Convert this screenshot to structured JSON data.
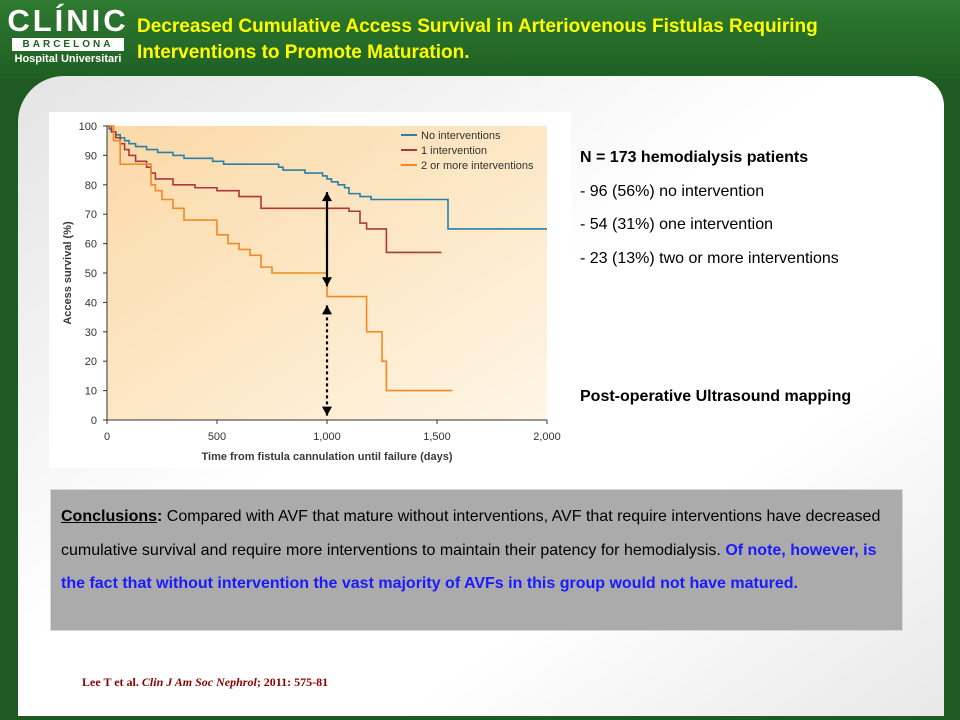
{
  "logo": {
    "name": "CLÍNIC",
    "city": "BARCELONA",
    "hospital": "Hospital Universitari"
  },
  "title": {
    "line1": "Decreased Cumulative Access Survival in Arteriovenous Fistulas Requiring",
    "line2": "Interventions to Promote Maturation."
  },
  "stats": {
    "header": "N = 173 hemodialysis patients",
    "items": [
      "- 96 (56%) no intervention",
      "- 54 (31%) one intervention",
      "- 23 (13%) two or more interventions"
    ]
  },
  "ultrasound": "Post-operative Ultrasound mapping",
  "conclusion": {
    "label": "Conclusions",
    "colon": ":",
    "text": " Compared with AVF that mature without interventions, AVF that require interventions have decreased cumulative survival and require more interventions to maintain their patency for hemodialysis. ",
    "note": "Of note, however, is the fact that without intervention the vast majority of AVFs in this group would not have matured."
  },
  "citation": {
    "authors": "Lee T et al. ",
    "journal": "Clin J Am Soc Nephrol",
    "rest": "; 2011: 575-81"
  },
  "colors": {
    "header_green": "#1f5f24",
    "title_yellow": "#ffff00",
    "none": "#2b7fa8",
    "one": "#a83a3e",
    "two": "#f08a24",
    "note_blue": "#1a1aff"
  },
  "chart_data": {
    "type": "line",
    "step": true,
    "xlabel": "Time from fistula cannulation until failure (days)",
    "ylabel": "Access survival (%)",
    "xlim": [
      0,
      2000
    ],
    "ylim": [
      0,
      100
    ],
    "xticks": [
      0,
      500,
      1000,
      1500,
      2000
    ],
    "xtick_labels": [
      "0",
      "500",
      "1,000",
      "1,500",
      "2,000"
    ],
    "yticks": [
      0,
      10,
      20,
      30,
      40,
      50,
      60,
      70,
      80,
      90,
      100
    ],
    "grid": false,
    "legend_position": "top-right",
    "series": [
      {
        "name": "No interventions",
        "color": "#2b7fa8",
        "x": [
          0,
          10,
          20,
          40,
          60,
          80,
          100,
          130,
          180,
          230,
          300,
          350,
          450,
          480,
          530,
          650,
          780,
          800,
          900,
          980,
          1000,
          1020,
          1050,
          1080,
          1100,
          1150,
          1200,
          1300,
          1520,
          1550,
          2000
        ],
        "y": [
          100,
          99,
          98,
          97,
          96,
          95,
          94,
          93,
          92,
          91,
          90,
          89,
          89,
          88,
          87,
          87,
          86,
          85,
          84,
          83,
          82,
          81,
          80,
          79,
          77,
          76,
          75,
          75,
          75,
          65,
          65
        ]
      },
      {
        "name": "1 intervention",
        "color": "#a83a3e",
        "x": [
          0,
          20,
          40,
          60,
          80,
          100,
          130,
          180,
          200,
          220,
          300,
          400,
          500,
          600,
          700,
          1000,
          1100,
          1150,
          1180,
          1200,
          1270,
          1520
        ],
        "y": [
          100,
          98,
          96,
          94,
          92,
          90,
          88,
          86,
          84,
          82,
          80,
          79,
          78,
          76,
          72,
          72,
          71,
          67,
          65,
          65,
          57,
          57
        ]
      },
      {
        "name": "2 or more interventions",
        "color": "#f08a24",
        "x": [
          0,
          30,
          60,
          100,
          200,
          220,
          250,
          300,
          350,
          450,
          500,
          550,
          600,
          650,
          700,
          750,
          850,
          1000,
          1100,
          1150,
          1180,
          1210,
          1250,
          1270,
          1300,
          1570
        ],
        "y": [
          100,
          95,
          87,
          87,
          80,
          78,
          75,
          72,
          68,
          68,
          63,
          60,
          58,
          56,
          52,
          50,
          50,
          42,
          42,
          42,
          30,
          30,
          20,
          10,
          10,
          10
        ]
      }
    ]
  }
}
